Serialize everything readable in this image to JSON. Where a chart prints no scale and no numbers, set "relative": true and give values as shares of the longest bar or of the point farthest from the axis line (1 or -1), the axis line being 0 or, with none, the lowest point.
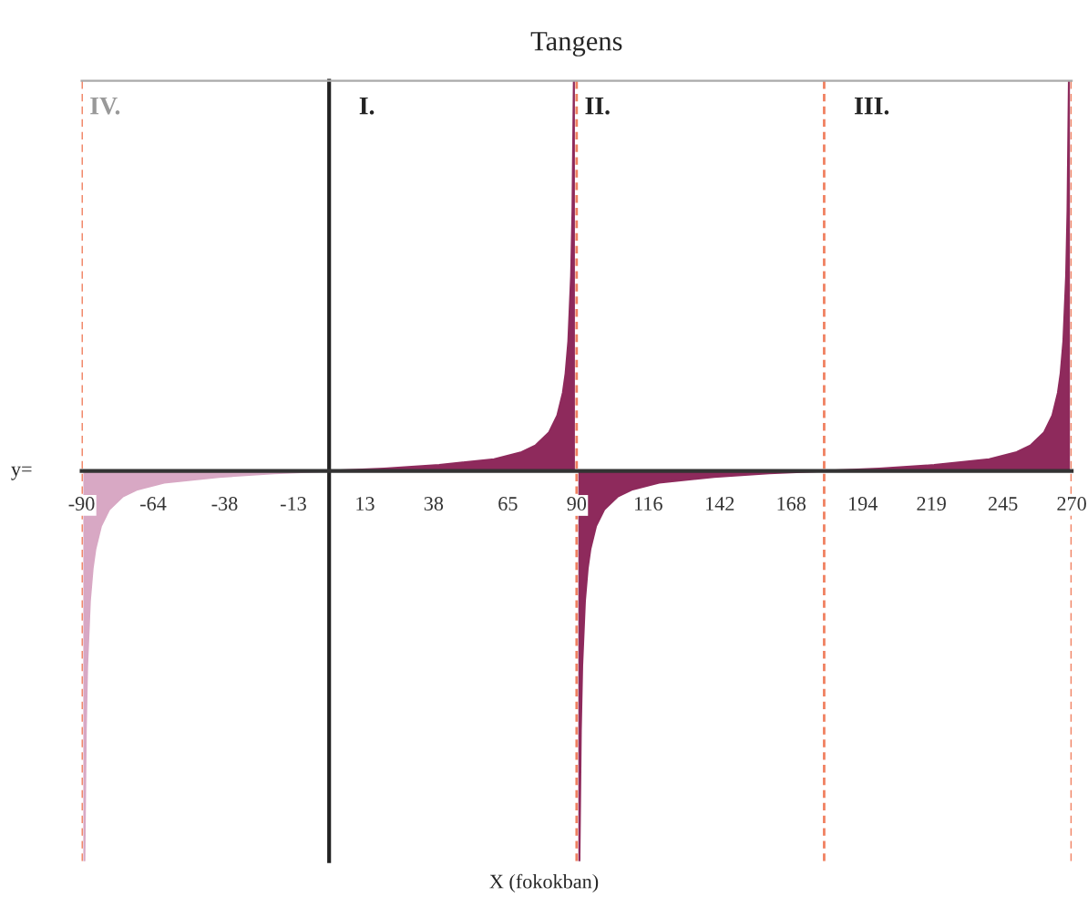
{
  "chart_data": {
    "type": "area",
    "title": "Tangens",
    "xlabel": "X (fokokban)",
    "ylabel": "y=",
    "relative": true,
    "xlim": [
      -90,
      270
    ],
    "xticks": [
      -90,
      -64,
      -38,
      -13,
      13,
      38,
      65,
      90,
      116,
      142,
      168,
      194,
      219,
      245,
      270
    ],
    "series": [
      {
        "color": "#d8a8c4",
        "x": [
          -89,
          -88.5,
          -88,
          -87,
          -86,
          -85,
          -83,
          -80,
          -75,
          -70,
          -60,
          -40,
          -20,
          0
        ],
        "values": [
          -1,
          -0.667,
          -0.5,
          -0.333,
          -0.25,
          -0.2,
          -0.142,
          -0.099,
          -0.065,
          -0.048,
          -0.03,
          -0.015,
          -0.006,
          0
        ]
      },
      {
        "color": "#8e2a5c",
        "x": [
          0,
          20,
          40,
          60,
          70,
          75,
          80,
          83,
          85,
          86,
          87,
          88,
          88.5,
          89
        ],
        "values": [
          0,
          0.006,
          0.015,
          0.03,
          0.048,
          0.065,
          0.099,
          0.142,
          0.2,
          0.25,
          0.333,
          0.5,
          0.667,
          1
        ]
      },
      {
        "color": "#8e2a5c",
        "x": [
          91,
          91.5,
          92,
          93,
          94,
          95,
          97,
          100,
          105,
          110,
          120,
          140,
          160,
          180
        ],
        "values": [
          -1,
          -0.667,
          -0.5,
          -0.333,
          -0.25,
          -0.2,
          -0.142,
          -0.099,
          -0.065,
          -0.048,
          -0.03,
          -0.015,
          -0.006,
          0
        ]
      },
      {
        "color": "#8e2a5c",
        "x": [
          180,
          200,
          220,
          240,
          250,
          255,
          260,
          263,
          265,
          266,
          267,
          268,
          268.5,
          269
        ],
        "values": [
          0,
          0.006,
          0.015,
          0.03,
          0.048,
          0.065,
          0.099,
          0.142,
          0.2,
          0.25,
          0.333,
          0.5,
          0.667,
          1
        ]
      }
    ],
    "ref_lines": [
      {
        "axis": "x",
        "value": -90,
        "color": "#f08060",
        "line_style": "dashed"
      },
      {
        "axis": "x",
        "value": 90,
        "color": "#f08060",
        "line_style": "dashed"
      },
      {
        "axis": "x",
        "value": 180,
        "color": "#f08060",
        "line_style": "dashed"
      },
      {
        "axis": "x",
        "value": 270,
        "color": "#f08060",
        "line_style": "dashed"
      }
    ],
    "annotations": [
      "IV.",
      "I.",
      "II.",
      "III."
    ]
  }
}
